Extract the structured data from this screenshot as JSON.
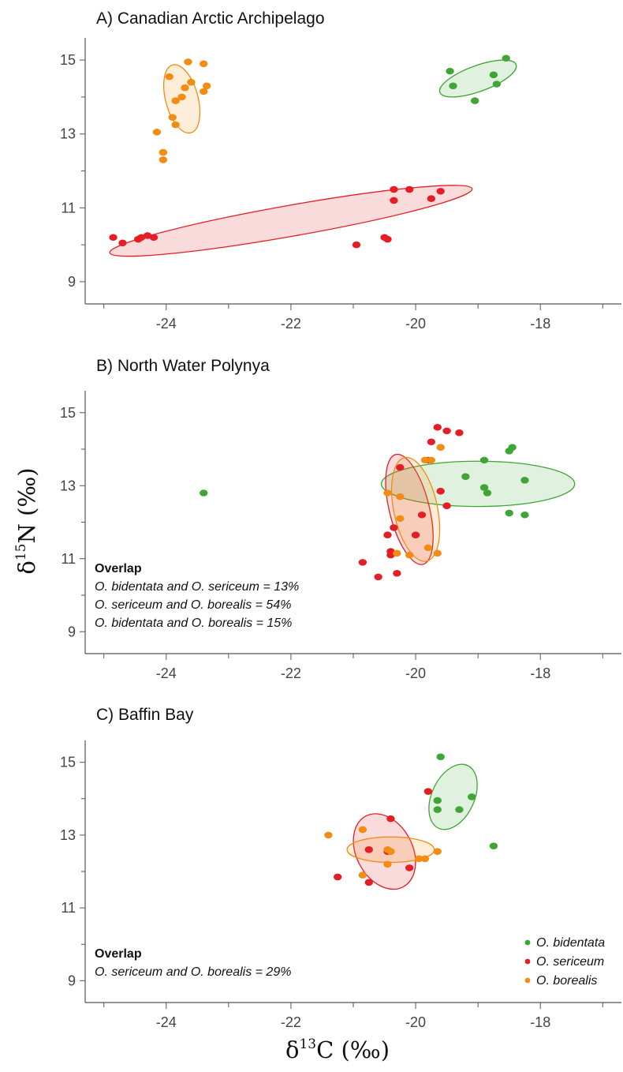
{
  "axis_titles": {
    "x_prefix": "δ",
    "x_sup": "13",
    "x_main": "C (‰)",
    "y_prefix": "δ",
    "y_sup": "15",
    "y_main": "N (‰)"
  },
  "legend": [
    {
      "name": "O. bidentata",
      "color": "#3fa535"
    },
    {
      "name": "O. sericeum",
      "color": "#e31e24"
    },
    {
      "name": "O. borealis",
      "color": "#f28c13"
    }
  ],
  "chart_data": [
    {
      "type": "scatter",
      "title": "A) Canadian Arctic Archipelago",
      "xlim": [
        -25.3,
        -16.7
      ],
      "ylim": [
        8.4,
        15.6
      ],
      "xticks": [
        -24,
        -22,
        -20,
        -18
      ],
      "yticks": [
        9,
        11,
        13,
        15
      ],
      "xtick_labels": [
        "-24",
        "-22",
        "-20",
        "-18"
      ],
      "ytick_labels": [
        "9",
        "11",
        "13",
        "15"
      ],
      "grid": false,
      "overlap": null,
      "series": [
        {
          "name": "O. bidentata",
          "color": "#3fa535",
          "points": [
            [
              -19.45,
              14.7
            ],
            [
              -19.4,
              14.3
            ],
            [
              -18.55,
              15.05
            ],
            [
              -18.75,
              14.6
            ],
            [
              -18.7,
              14.35
            ],
            [
              -19.05,
              13.9
            ]
          ],
          "ellipse": {
            "cx": -19.0,
            "cy": 14.5,
            "rx": 0.65,
            "ry": 0.35,
            "angle": 20
          }
        },
        {
          "name": "O. sericeum",
          "color": "#e31e24",
          "points": [
            [
              -24.85,
              10.2
            ],
            [
              -24.7,
              10.05
            ],
            [
              -24.4,
              10.2
            ],
            [
              -24.45,
              10.15
            ],
            [
              -24.3,
              10.25
            ],
            [
              -24.2,
              10.2
            ],
            [
              -20.95,
              10.0
            ],
            [
              -20.5,
              10.2
            ],
            [
              -20.45,
              10.15
            ],
            [
              -20.35,
              11.5
            ],
            [
              -20.35,
              11.2
            ],
            [
              -20.1,
              11.5
            ],
            [
              -19.75,
              11.25
            ],
            [
              -19.6,
              11.45
            ]
          ],
          "ellipse": {
            "cx": -22.0,
            "cy": 10.65,
            "rx": 2.95,
            "ry": 0.42,
            "angle": 10
          }
        },
        {
          "name": "O. borealis",
          "color": "#f28c13",
          "points": [
            [
              -23.95,
              14.55
            ],
            [
              -23.65,
              14.95
            ],
            [
              -23.4,
              14.9
            ],
            [
              -23.35,
              14.3
            ],
            [
              -23.4,
              14.15
            ],
            [
              -23.6,
              14.4
            ],
            [
              -23.7,
              14.25
            ],
            [
              -23.75,
              14.0
            ],
            [
              -23.85,
              13.9
            ],
            [
              -23.9,
              13.45
            ],
            [
              -23.85,
              13.25
            ],
            [
              -24.15,
              13.05
            ],
            [
              -24.05,
              12.5
            ],
            [
              -24.05,
              12.3
            ]
          ],
          "ellipse": {
            "cx": -23.75,
            "cy": 13.95,
            "rx": 0.26,
            "ry": 0.95,
            "angle": 15
          }
        }
      ]
    },
    {
      "type": "scatter",
      "title": "B) North Water Polynya",
      "xlim": [
        -25.3,
        -16.7
      ],
      "ylim": [
        8.4,
        15.6
      ],
      "xticks": [
        -24,
        -22,
        -20,
        -18
      ],
      "yticks": [
        9,
        11,
        13,
        15
      ],
      "xtick_labels": [
        "-24",
        "-22",
        "-20",
        "-18"
      ],
      "ytick_labels": [
        "9",
        "11",
        "13",
        "15"
      ],
      "grid": false,
      "overlap": {
        "title": "Overlap",
        "lines": [
          "O. bidentata and O. sericeum = 13%",
          "O. sericeum and O. borealis = 54%",
          "O. bidentata and O. borealis = 15%"
        ]
      },
      "series": [
        {
          "name": "O. bidentata",
          "color": "#3fa535",
          "points": [
            [
              -23.4,
              12.8
            ],
            [
              -19.2,
              13.25
            ],
            [
              -18.9,
              13.7
            ],
            [
              -18.9,
              12.95
            ],
            [
              -18.85,
              12.8
            ],
            [
              -18.5,
              13.95
            ],
            [
              -18.45,
              14.05
            ],
            [
              -18.5,
              12.25
            ],
            [
              -18.25,
              13.15
            ],
            [
              -18.25,
              12.2
            ]
          ],
          "ellipse": {
            "cx": -19.0,
            "cy": 13.05,
            "rx": 1.55,
            "ry": 0.62,
            "angle": 0
          }
        },
        {
          "name": "O. sericeum",
          "color": "#e31e24",
          "points": [
            [
              -20.85,
              10.9
            ],
            [
              -20.6,
              10.5
            ],
            [
              -20.3,
              10.6
            ],
            [
              -20.4,
              11.2
            ],
            [
              -20.4,
              11.1
            ],
            [
              -20.45,
              11.65
            ],
            [
              -20.35,
              11.85
            ],
            [
              -20.0,
              11.65
            ],
            [
              -19.9,
              12.2
            ],
            [
              -19.6,
              12.85
            ],
            [
              -19.5,
              12.45
            ],
            [
              -20.25,
              13.5
            ],
            [
              -19.75,
              14.2
            ],
            [
              -19.65,
              14.6
            ],
            [
              -19.5,
              14.5
            ],
            [
              -19.3,
              14.45
            ],
            [
              -19.8,
              13.7
            ]
          ],
          "ellipse": {
            "cx": -20.1,
            "cy": 12.35,
            "rx": 0.32,
            "ry": 1.55,
            "angle": 14
          }
        },
        {
          "name": "O. borealis",
          "color": "#f28c13",
          "points": [
            [
              -20.45,
              12.8
            ],
            [
              -20.25,
              12.7
            ],
            [
              -20.25,
              12.1
            ],
            [
              -20.3,
              11.15
            ],
            [
              -20.1,
              11.1
            ],
            [
              -19.8,
              11.3
            ],
            [
              -19.65,
              11.15
            ],
            [
              -19.75,
              13.7
            ],
            [
              -19.85,
              13.7
            ],
            [
              -19.6,
              14.05
            ]
          ],
          "ellipse": {
            "cx": -20.0,
            "cy": 12.35,
            "rx": 0.35,
            "ry": 1.45,
            "angle": 12
          }
        }
      ]
    },
    {
      "type": "scatter",
      "title": "C) Baffin Bay",
      "xlim": [
        -25.3,
        -16.7
      ],
      "ylim": [
        8.4,
        15.6
      ],
      "xticks": [
        -24,
        -22,
        -20,
        -18
      ],
      "yticks": [
        9,
        11,
        13,
        15
      ],
      "xtick_labels": [
        "-24",
        "-22",
        "-20",
        "-18"
      ],
      "ytick_labels": [
        "9",
        "11",
        "13",
        "15"
      ],
      "grid": false,
      "overlap": {
        "title": "Overlap",
        "lines": [
          "O. sericeum and O. borealis = 29%"
        ]
      },
      "series": [
        {
          "name": "O. bidentata",
          "color": "#3fa535",
          "points": [
            [
              -19.6,
              15.15
            ],
            [
              -19.65,
              13.95
            ],
            [
              -19.65,
              13.7
            ],
            [
              -19.3,
              13.7
            ],
            [
              -19.1,
              14.05
            ],
            [
              -18.75,
              12.7
            ]
          ],
          "ellipse": {
            "cx": -19.4,
            "cy": 14.05,
            "rx": 0.34,
            "ry": 0.95,
            "angle": -25
          }
        },
        {
          "name": "O. sericeum",
          "color": "#e31e24",
          "points": [
            [
              -21.25,
              11.85
            ],
            [
              -20.75,
              11.7
            ],
            [
              -20.75,
              12.6
            ],
            [
              -20.4,
              13.45
            ],
            [
              -20.45,
              12.55
            ],
            [
              -20.1,
              12.1
            ],
            [
              -19.8,
              14.2
            ]
          ],
          "ellipse": {
            "cx": -20.5,
            "cy": 12.55,
            "rx": 0.45,
            "ry": 1.1,
            "angle": 28
          }
        },
        {
          "name": "O. borealis",
          "color": "#f28c13",
          "points": [
            [
              -21.4,
              13.0
            ],
            [
              -20.85,
              13.15
            ],
            [
              -20.85,
              11.9
            ],
            [
              -20.45,
              12.6
            ],
            [
              -20.4,
              12.55
            ],
            [
              -20.45,
              12.2
            ],
            [
              -19.95,
              12.35
            ],
            [
              -19.85,
              12.35
            ],
            [
              -19.65,
              12.55
            ]
          ],
          "ellipse": {
            "cx": -20.4,
            "cy": 12.6,
            "rx": 0.7,
            "ry": 0.35,
            "angle": 0
          }
        }
      ]
    }
  ]
}
